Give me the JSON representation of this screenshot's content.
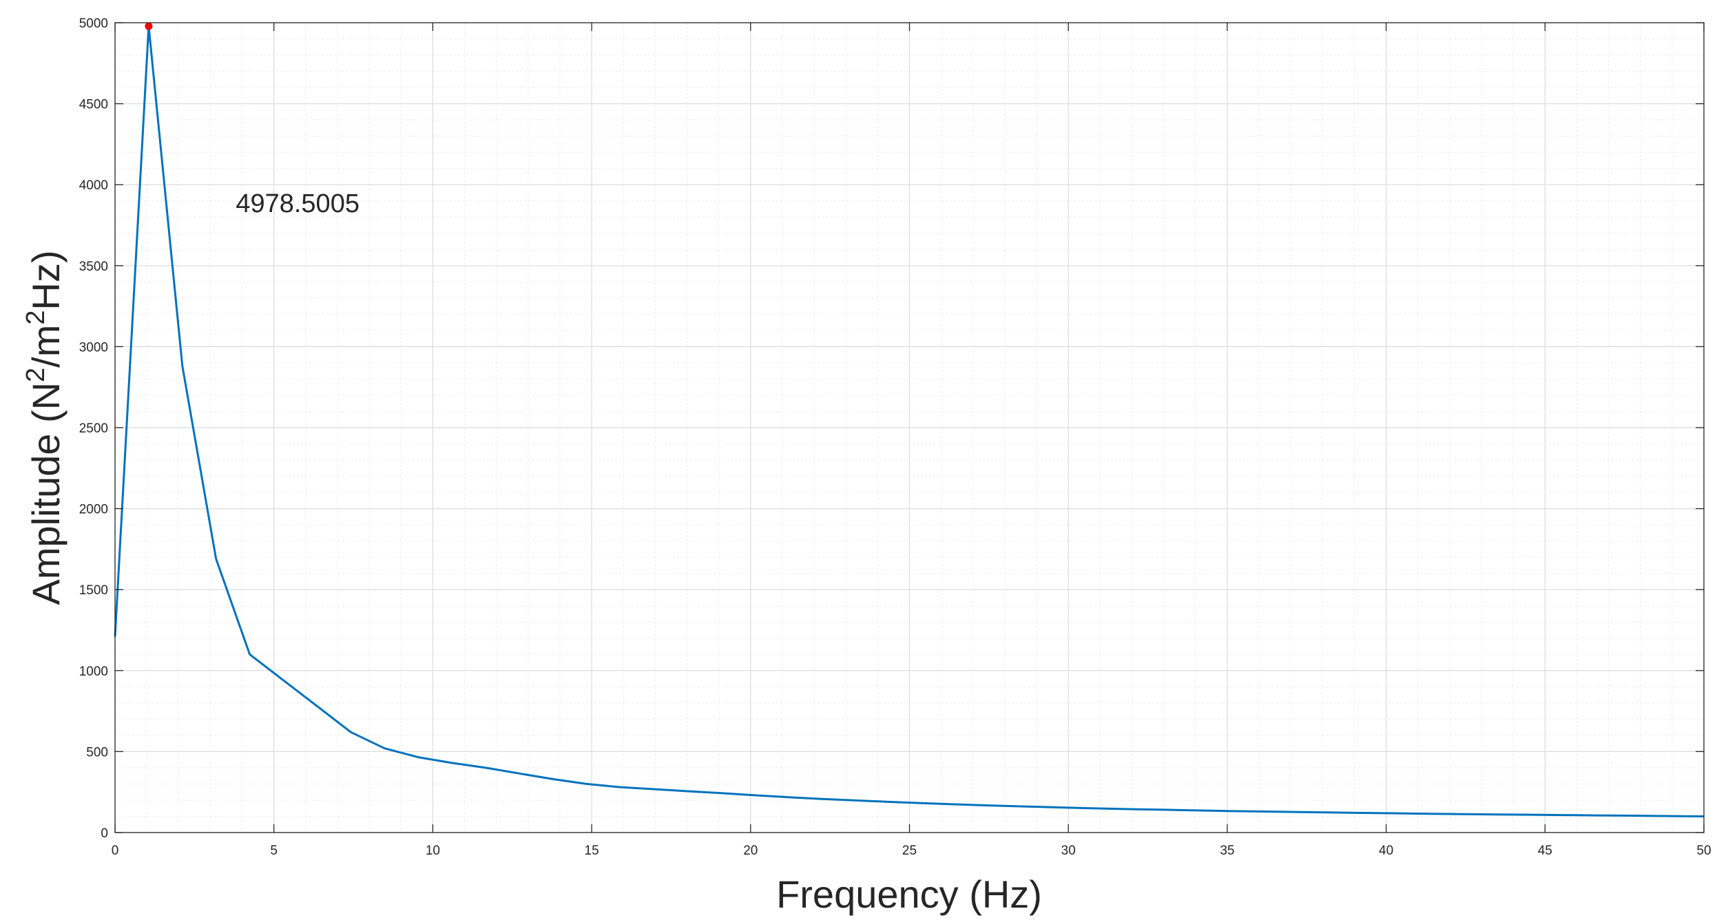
{
  "chart_data": {
    "type": "line",
    "xlabel": "Frequency (Hz)",
    "ylabel_parts": [
      "Amplitude (N",
      "2",
      "/m",
      "2",
      "Hz)"
    ],
    "xlim": [
      0,
      50
    ],
    "ylim": [
      0,
      5000
    ],
    "xticks": [
      0,
      5,
      10,
      15,
      20,
      25,
      30,
      35,
      40,
      45,
      50
    ],
    "yticks": [
      0,
      500,
      1000,
      1500,
      2000,
      2500,
      3000,
      3500,
      4000,
      4500,
      5000
    ],
    "xtick_labels": [
      "0",
      "5",
      "10",
      "15",
      "20",
      "25",
      "30",
      "35",
      "40",
      "45",
      "50"
    ],
    "ytick_labels": [
      "0",
      "500",
      "1000",
      "1500",
      "2000",
      "2500",
      "3000",
      "3500",
      "4000",
      "4500",
      "5000"
    ],
    "grid": true,
    "minor_grid": true,
    "series": [
      {
        "color": "#0072BD",
        "x": [
          0,
          1.06,
          2.12,
          3.18,
          4.24,
          5.3,
          6.36,
          7.42,
          8.48,
          9.54,
          10.6,
          11.66,
          12.72,
          13.78,
          14.84,
          15.9,
          16.96,
          18.02,
          19.08,
          20.14,
          21.2,
          22.26,
          23.32,
          24.38,
          25.44,
          26.5,
          27.56,
          28.62,
          29.68,
          30.74,
          31.8,
          32.86,
          33.92,
          34.98,
          36.04,
          37.1,
          38.16,
          39.22,
          40.28,
          41.34,
          42.4,
          43.46,
          44.52,
          45.58,
          46.64,
          47.7,
          48.76,
          49.82,
          50
        ],
        "y": [
          1210,
          4978.5,
          2880,
          1690,
          1100,
          940,
          780,
          620,
          520,
          465,
          430,
          400,
          365,
          330,
          300,
          280,
          268,
          255,
          243,
          230,
          218,
          207,
          198,
          189,
          181,
          174,
          167,
          161,
          155,
          150,
          145,
          141,
          137,
          133,
          130,
          127,
          124,
          121,
          119,
          116,
          114,
          112,
          110,
          108,
          106,
          104,
          102,
          100,
          100
        ]
      }
    ],
    "peak_marker": {
      "x": 1.06,
      "y": 4978.5,
      "color": "#FF0000"
    },
    "annotation": {
      "text": "4978.5005",
      "x": 3.8,
      "y": 3830
    }
  }
}
